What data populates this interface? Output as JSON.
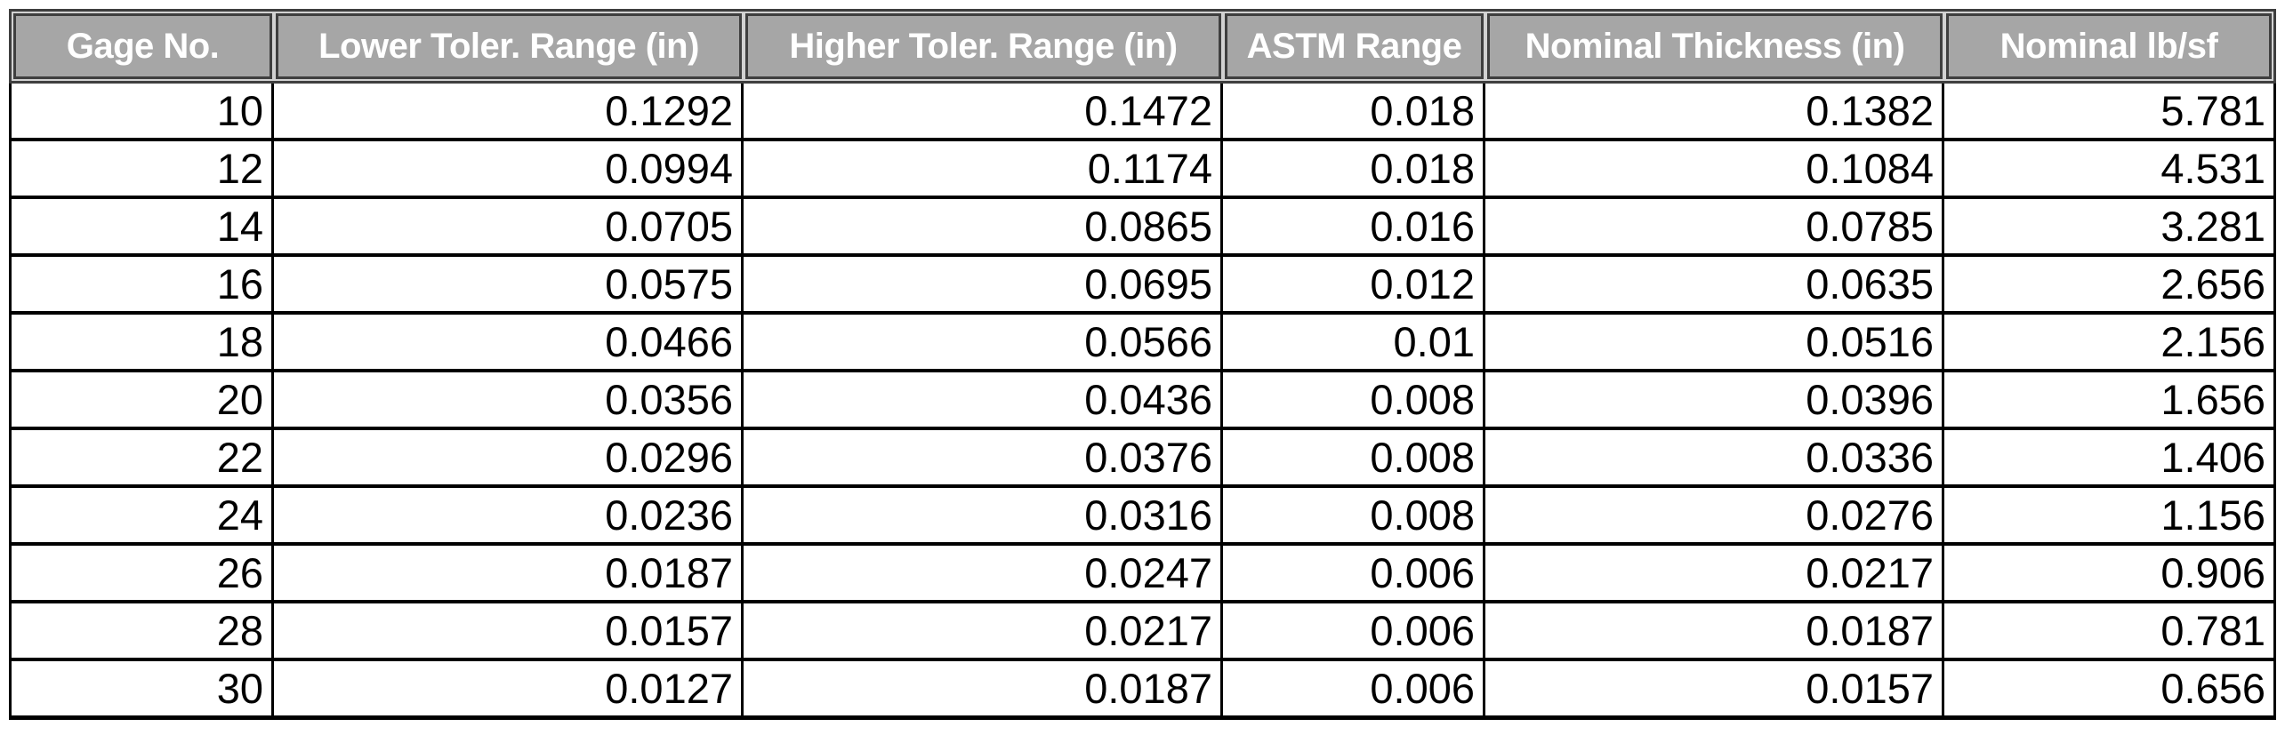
{
  "table": {
    "columns": [
      "Gage No.",
      "Lower Toler. Range (in)",
      "Higher Toler. Range (in)",
      "ASTM Range",
      "Nominal Thickness (in)",
      "Nominal lb/sf"
    ],
    "rows": [
      [
        "10",
        "0.1292",
        "0.1472",
        "0.018",
        "0.1382",
        "5.781"
      ],
      [
        "12",
        "0.0994",
        "0.1174",
        "0.018",
        "0.1084",
        "4.531"
      ],
      [
        "14",
        "0.0705",
        "0.0865",
        "0.016",
        "0.0785",
        "3.281"
      ],
      [
        "16",
        "0.0575",
        "0.0695",
        "0.012",
        "0.0635",
        "2.656"
      ],
      [
        "18",
        "0.0466",
        "0.0566",
        "0.01",
        "0.0516",
        "2.156"
      ],
      [
        "20",
        "0.0356",
        "0.0436",
        "0.008",
        "0.0396",
        "1.656"
      ],
      [
        "22",
        "0.0296",
        "0.0376",
        "0.008",
        "0.0336",
        "1.406"
      ],
      [
        "24",
        "0.0236",
        "0.0316",
        "0.008",
        "0.0276",
        "1.156"
      ],
      [
        "26",
        "0.0187",
        "0.0247",
        "0.006",
        "0.0217",
        "0.906"
      ],
      [
        "28",
        "0.0157",
        "0.0217",
        "0.006",
        "0.0187",
        "0.781"
      ],
      [
        "30",
        "0.0127",
        "0.0187",
        "0.006",
        "0.0157",
        "0.656"
      ]
    ]
  },
  "colors": {
    "header_fill": "#a6a6a6",
    "header_border": "#3f3f3f",
    "header_gap_line": "#d2d2d2",
    "header_text": "#ffffff",
    "grid_line": "#000000",
    "cell_text": "#000000",
    "background": "#ffffff"
  }
}
